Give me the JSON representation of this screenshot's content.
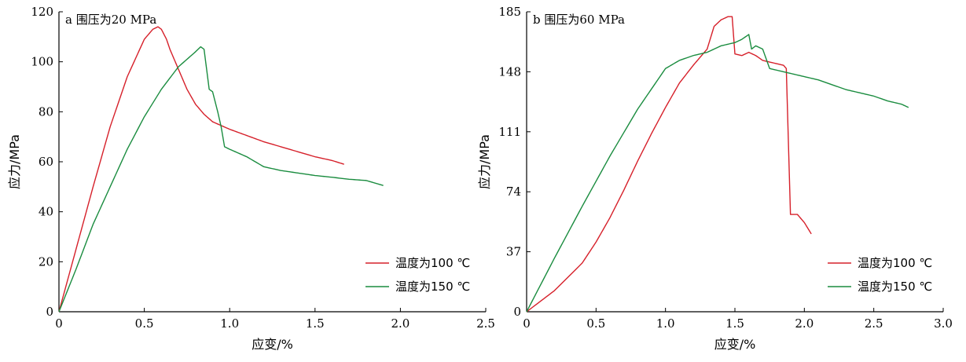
{
  "colors": {
    "red": "#d6202a",
    "green": "#1a8c3f",
    "axis": "#000000"
  },
  "chart_data": [
    {
      "type": "line",
      "title": "a 围压为20 MPa",
      "xlabel": "应变/%",
      "ylabel": "应力/MPa",
      "xlim": [
        0,
        2.5
      ],
      "ylim": [
        0,
        120
      ],
      "xticks": [
        0,
        0.5,
        1.0,
        1.5,
        2.0,
        2.5
      ],
      "xtick_labels": [
        "0",
        "0.5",
        "1.0",
        "1.5",
        "2.0",
        "2.5"
      ],
      "yticks": [
        0,
        20,
        40,
        60,
        80,
        100,
        120
      ],
      "ytick_labels": [
        "0",
        "20",
        "40",
        "60",
        "80",
        "100",
        "120"
      ],
      "legend_position": "lower-right",
      "series": [
        {
          "name": "温度为100 ℃",
          "color": "red",
          "x": [
            0,
            0.1,
            0.2,
            0.3,
            0.4,
            0.5,
            0.55,
            0.58,
            0.6,
            0.63,
            0.65,
            0.7,
            0.75,
            0.8,
            0.85,
            0.9,
            1.0,
            1.1,
            1.2,
            1.3,
            1.4,
            1.5,
            1.6,
            1.67
          ],
          "y": [
            0,
            25,
            50,
            74,
            94,
            109,
            113,
            114,
            113,
            109,
            105,
            97,
            89,
            83,
            79,
            76,
            73,
            70.5,
            68,
            66,
            64,
            62,
            60.5,
            59
          ]
        },
        {
          "name": "温度为150 ℃",
          "color": "green",
          "x": [
            0,
            0.1,
            0.2,
            0.3,
            0.4,
            0.5,
            0.6,
            0.7,
            0.8,
            0.83,
            0.85,
            0.88,
            0.9,
            0.93,
            0.95,
            0.97,
            1.0,
            1.1,
            1.2,
            1.3,
            1.4,
            1.5,
            1.6,
            1.7,
            1.8,
            1.85,
            1.9
          ],
          "y": [
            0,
            17,
            35,
            50,
            65,
            78,
            89,
            98,
            104,
            106,
            105,
            89,
            88,
            80,
            74,
            66,
            65,
            62,
            58,
            56.5,
            55.5,
            54.5,
            53.8,
            53,
            52.5,
            51.5,
            50.5
          ]
        }
      ]
    },
    {
      "type": "line",
      "title": "b 围压为60 MPa",
      "xlabel": "应变/%",
      "ylabel": "应力/MPa",
      "xlim": [
        0,
        3.0
      ],
      "ylim": [
        0,
        185
      ],
      "xticks": [
        0,
        0.5,
        1.0,
        1.5,
        2.0,
        2.5,
        3.0
      ],
      "xtick_labels": [
        "0",
        "0.5",
        "1.0",
        "1.5",
        "2.0",
        "2.5",
        "3.0"
      ],
      "yticks": [
        0,
        37,
        74,
        111,
        148,
        185
      ],
      "ytick_labels": [
        "0",
        "37",
        "74",
        "111",
        "148",
        "185"
      ],
      "legend_position": "lower-right",
      "series": [
        {
          "name": "温度为100 ℃",
          "color": "red",
          "x": [
            0,
            0.2,
            0.4,
            0.5,
            0.6,
            0.7,
            0.8,
            0.9,
            1.0,
            1.1,
            1.2,
            1.25,
            1.3,
            1.35,
            1.4,
            1.45,
            1.48,
            1.5,
            1.55,
            1.6,
            1.65,
            1.7,
            1.8,
            1.85,
            1.87,
            1.9,
            1.95,
            2.0,
            2.05
          ],
          "y": [
            0,
            13,
            30,
            43,
            58,
            75,
            93,
            110,
            126,
            141,
            152,
            157,
            162,
            176,
            180,
            182,
            182,
            159,
            158,
            160,
            158,
            155,
            153,
            152,
            150,
            60,
            60,
            55,
            48
          ]
        },
        {
          "name": "温度为150 ℃",
          "color": "green",
          "x": [
            0,
            0.2,
            0.4,
            0.6,
            0.8,
            1.0,
            1.1,
            1.2,
            1.3,
            1.4,
            1.5,
            1.55,
            1.6,
            1.62,
            1.65,
            1.7,
            1.75,
            1.8,
            1.9,
            2.0,
            2.1,
            2.2,
            2.3,
            2.4,
            2.5,
            2.6,
            2.7,
            2.75
          ],
          "y": [
            0,
            33,
            65,
            96,
            125,
            150,
            155,
            158,
            160,
            164,
            166,
            168,
            171,
            162,
            164,
            162,
            150,
            149,
            147,
            145,
            143,
            140,
            137,
            135,
            133,
            130,
            128,
            126
          ]
        }
      ]
    }
  ]
}
